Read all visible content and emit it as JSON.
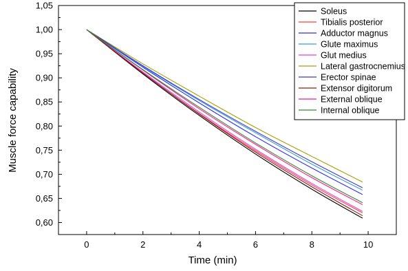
{
  "chart_data": {
    "type": "line",
    "title": "",
    "xlabel": "Time (min)",
    "ylabel": "Muscle force capability",
    "xlim": [
      -1,
      11
    ],
    "ylim": [
      0.575,
      1.05
    ],
    "x_ticks": [
      0,
      2,
      4,
      6,
      8,
      10
    ],
    "y_ticks": [
      0.6,
      0.65,
      0.7,
      0.75,
      0.8,
      0.85,
      0.9,
      0.95,
      1.0,
      1.05
    ],
    "x_tick_labels": [
      "0",
      "2",
      "4",
      "6",
      "8",
      "10"
    ],
    "y_tick_labels": [
      "0,60",
      "0,65",
      "0,70",
      "0,75",
      "0,80",
      "0,85",
      "0,90",
      "0,95",
      "1,00",
      "1,05"
    ],
    "grid": false,
    "legend_position": "top-right",
    "x": [
      0,
      2,
      4,
      6,
      8,
      9.8
    ],
    "series": [
      {
        "name": "Soleus",
        "color": "#000000",
        "values": [
          1.0,
          0.908,
          0.822,
          0.742,
          0.669,
          0.609
        ]
      },
      {
        "name": "Tibialis posterior",
        "color": "#ff3b3b",
        "values": [
          1.0,
          0.91,
          0.826,
          0.749,
          0.678,
          0.62
        ]
      },
      {
        "name": "Adductor magnus",
        "color": "#2b2bff",
        "values": [
          1.0,
          0.922,
          0.848,
          0.778,
          0.713,
          0.658
        ]
      },
      {
        "name": "Glute maximus",
        "color": "#3c9ad8",
        "values": [
          1.0,
          0.924,
          0.853,
          0.786,
          0.721,
          0.667
        ]
      },
      {
        "name": "Glut medius",
        "color": "#e040e0",
        "values": [
          1.0,
          0.912,
          0.829,
          0.752,
          0.681,
          0.623
        ]
      },
      {
        "name": "Lateral gastrocnemius",
        "color": "#a0a000",
        "values": [
          1.0,
          0.929,
          0.862,
          0.797,
          0.737,
          0.684
        ]
      },
      {
        "name": "Erector spinae",
        "color": "#3a3acc",
        "values": [
          1.0,
          0.925,
          0.855,
          0.789,
          0.726,
          0.672
        ]
      },
      {
        "name": "Extensor digitorum",
        "color": "#8b1a1a",
        "values": [
          1.0,
          0.91,
          0.825,
          0.746,
          0.674,
          0.614
        ]
      },
      {
        "name": "External oblique",
        "color": "#ff1493",
        "values": [
          1.0,
          0.916,
          0.836,
          0.762,
          0.693,
          0.637
        ]
      },
      {
        "name": "Internal oblique",
        "color": "#2e8b2e",
        "values": [
          1.0,
          0.917,
          0.839,
          0.765,
          0.697,
          0.641
        ]
      }
    ]
  }
}
